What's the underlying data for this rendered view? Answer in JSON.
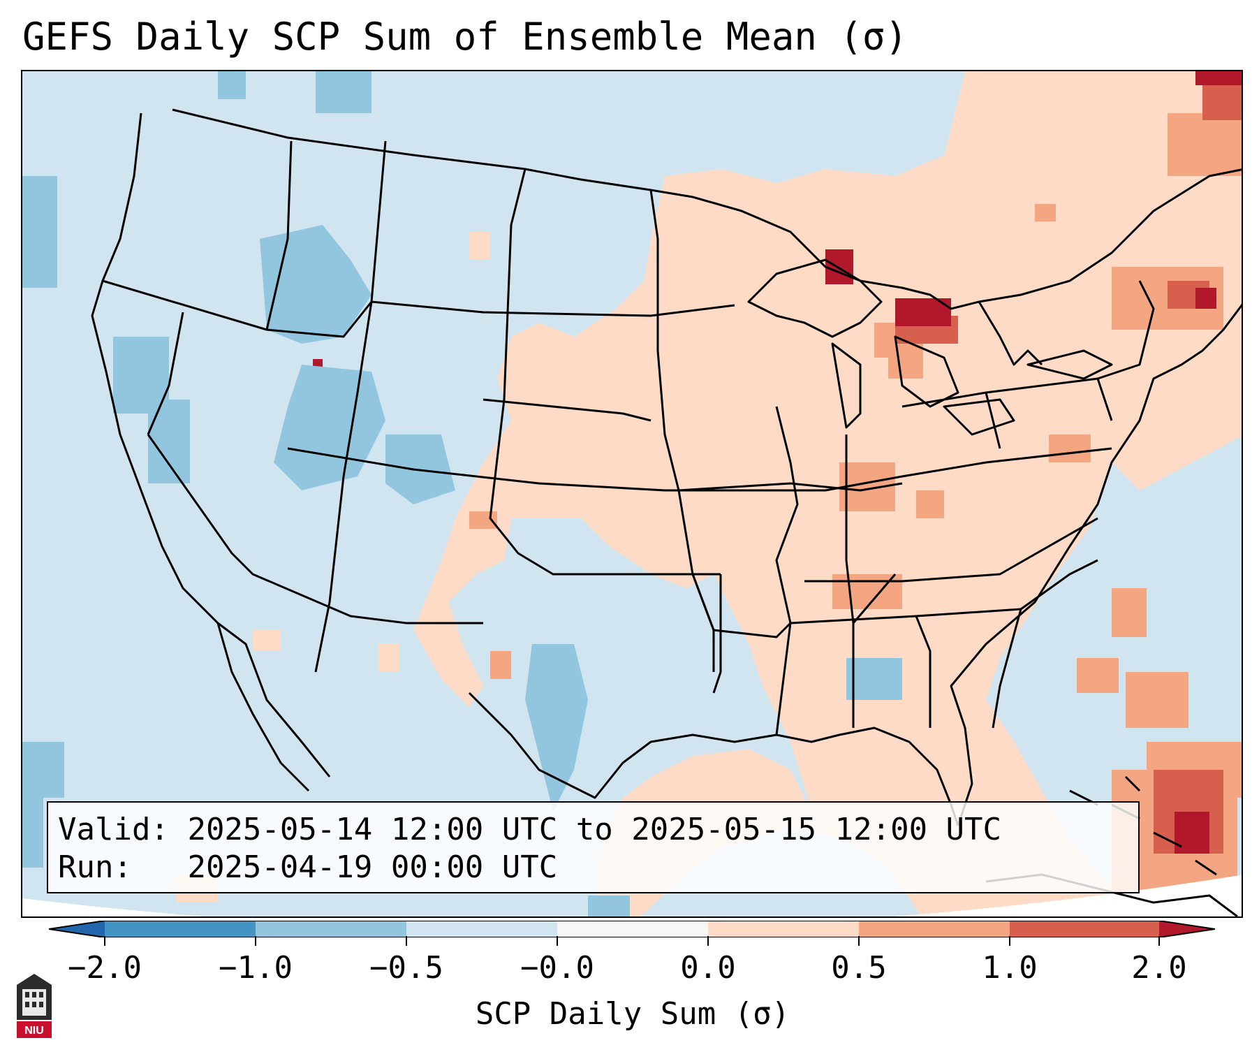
{
  "title": "GEFS Daily SCP Sum of Ensemble Mean (σ)",
  "info": {
    "valid_label": "Valid:",
    "valid_value": "2025-05-14 12:00 UTC to 2025-05-15 12:00 UTC",
    "run_label": "Run:",
    "run_value": "2025-04-19 00:00 UTC"
  },
  "colorbar": {
    "title": "SCP Daily Sum (σ)",
    "tick_labels": [
      "−2.0",
      "−1.0",
      "−0.5",
      "−0.0",
      "0.0",
      "0.5",
      "1.0",
      "2.0"
    ],
    "colors": {
      "below_min": "#2166ac",
      "c1": "#4393c3",
      "c2": "#92c5de",
      "c3": "#d1e5f0",
      "c4": "#f7f7f7",
      "c5": "#fddbc7",
      "c6": "#f4a582",
      "c7": "#d6604d",
      "above_max": "#b2182b"
    }
  },
  "map": {
    "background_color": "#d1e5f0",
    "outside_domain_color": "#ffffff",
    "border_color": "#000000",
    "regions_above_normal": [
      "Midwest",
      "Great Lakes",
      "Northeast",
      "Southern Plains",
      "Gulf of Mexico",
      "Western Atlantic"
    ],
    "regions_below_normal": [
      "Intermountain West",
      "Pacific Northwest",
      "Central Rockies"
    ]
  },
  "logo": {
    "text": "NIU"
  }
}
